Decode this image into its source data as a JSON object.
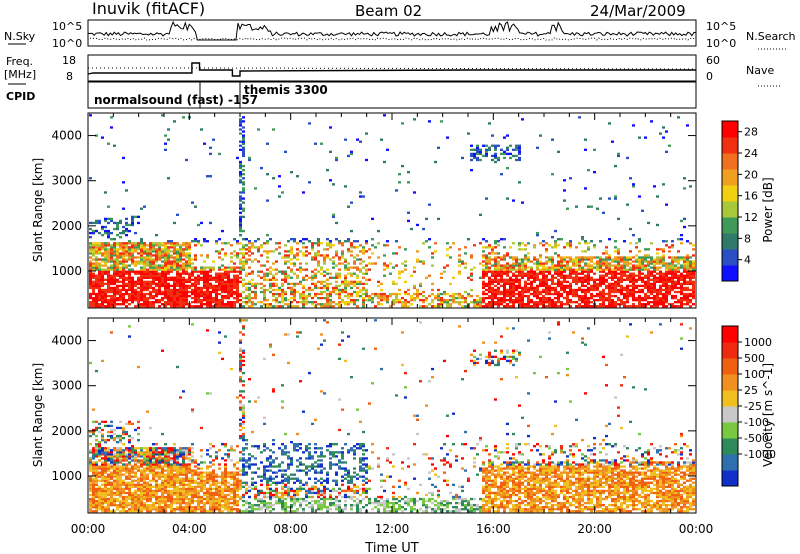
{
  "header": {
    "station": "Inuvik (fitACF)",
    "beam": "Beam 02",
    "date": "24/Mar/2009"
  },
  "strips": {
    "nsky_label": "N.Sky",
    "nsearch_label": "N.Search",
    "nsky_ticks": [
      "10^5",
      "10^0"
    ],
    "freq_label_1": "Freq.",
    "freq_label_2": "[MHz]",
    "freq_ticks": [
      "18",
      "8"
    ],
    "nave_label": "Nave",
    "nave_ticks": [
      "60",
      "0"
    ],
    "cpid_label": "CPID",
    "cpid_1": "normalsound (fast) -157",
    "cpid_2": "themis 3300"
  },
  "chart_data": [
    {
      "type": "heatmap",
      "title": "",
      "xlabel": "",
      "ylabel": "Slant Range [km]",
      "x_ticks": [
        "00:00",
        "04:00",
        "08:00",
        "12:00",
        "16:00",
        "20:00",
        "00:00"
      ],
      "y_ticks": [
        1000,
        2000,
        3000,
        4000
      ],
      "xlim_hours": [
        0,
        24
      ],
      "ylim_km": [
        180,
        4500
      ],
      "colorbar": {
        "label": "Power [dB]",
        "ticks": [
          4,
          8,
          12,
          16,
          20,
          24,
          28
        ],
        "range": [
          0,
          30
        ],
        "colors": [
          "#1010ff",
          "#2a4fc4",
          "#2f7a6a",
          "#3f9a5a",
          "#a8c83a",
          "#f0d010",
          "#f0a020",
          "#f07020",
          "#f03010",
          "#ff0000"
        ]
      }
    },
    {
      "type": "heatmap",
      "title": "",
      "xlabel": "Time UT",
      "ylabel": "Slant Range [km]",
      "x_ticks": [
        "00:00",
        "04:00",
        "08:00",
        "12:00",
        "16:00",
        "20:00",
        "00:00"
      ],
      "y_ticks": [
        1000,
        2000,
        3000,
        4000
      ],
      "xlim_hours": [
        0,
        24
      ],
      "ylim_km": [
        180,
        4500
      ],
      "colorbar": {
        "label": "Velocity [m s^-1]",
        "ticks": [
          "1000",
          "500",
          "100",
          "25",
          "-25",
          "-100",
          "-500",
          "-1000"
        ],
        "range": [
          -1000,
          1000
        ],
        "colors": [
          "#1030c8",
          "#2f6fb0",
          "#2f8a5a",
          "#78c840",
          "#c8c8c8",
          "#f0c020",
          "#f09020",
          "#f06010",
          "#f02a10",
          "#ff0000"
        ]
      }
    }
  ]
}
